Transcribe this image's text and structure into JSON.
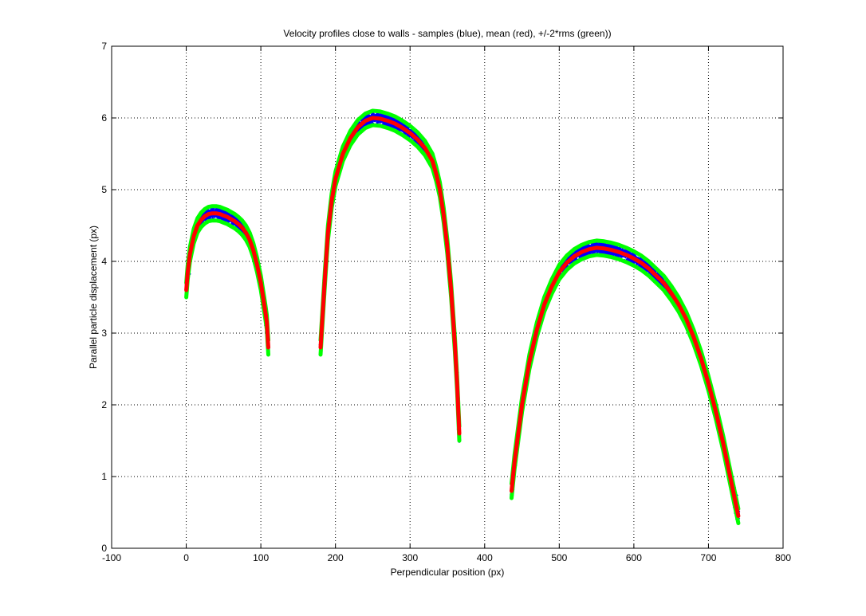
{
  "chart_data": {
    "type": "scatter",
    "title": "Velocity profiles close to walls - samples (blue), mean (red), +/-2*rms (green))",
    "xlabel": "Perpendicular position (px)",
    "ylabel": "Parallel particle displacement (px)",
    "xlim": [
      -100,
      800
    ],
    "ylim": [
      0,
      7
    ],
    "xticks": [
      "-100",
      "0",
      "100",
      "200",
      "300",
      "400",
      "500",
      "600",
      "700",
      "800"
    ],
    "yticks": [
      "0",
      "1",
      "2",
      "3",
      "4",
      "5",
      "6",
      "7"
    ],
    "grid": true,
    "colors": {
      "samples": "#0000ff",
      "mean": "#ff0000",
      "rms": "#00ff00"
    },
    "series": [
      {
        "values": [
          {
            "x": [
              0,
              2,
              5,
              10,
              15,
              20,
              25,
              30,
              35,
              40,
              45,
              50,
              55,
              60,
              65,
              70,
              75,
              80,
              85,
              90,
              95,
              100,
              103,
              106,
              108,
              110
            ],
            "y": [
              3.6,
              3.85,
              4.1,
              4.35,
              4.5,
              4.58,
              4.63,
              4.66,
              4.67,
              4.67,
              4.66,
              4.64,
              4.62,
              4.59,
              4.56,
              4.52,
              4.47,
              4.4,
              4.3,
              4.15,
              3.95,
              3.7,
              3.5,
              3.3,
              3.15,
              2.8
            ]
          },
          {
            "x": [
              180,
              183,
              186,
              190,
              195,
              200,
              210,
              220,
              230,
              240,
              250,
              260,
              270,
              280,
              290,
              300,
              310,
              320,
              330,
              335,
              340,
              345,
              350,
              355,
              360,
              363,
              366
            ],
            "y": [
              2.8,
              3.3,
              3.8,
              4.4,
              4.85,
              5.15,
              5.5,
              5.72,
              5.87,
              5.96,
              6.0,
              5.99,
              5.96,
              5.92,
              5.86,
              5.79,
              5.7,
              5.58,
              5.4,
              5.22,
              5.0,
              4.65,
              4.2,
              3.6,
              2.85,
              2.3,
              1.6
            ]
          },
          {
            "x": [
              436,
              440,
              445,
              450,
              460,
              470,
              480,
              490,
              500,
              510,
              520,
              530,
              540,
              550,
              560,
              570,
              580,
              590,
              600,
              610,
              620,
              630,
              640,
              650,
              660,
              670,
              680,
              690,
              700,
              710,
              720,
              730,
              735,
              740
            ],
            "y": [
              0.8,
              1.2,
              1.6,
              2.0,
              2.6,
              3.05,
              3.4,
              3.65,
              3.85,
              3.98,
              4.07,
              4.13,
              4.17,
              4.19,
              4.18,
              4.16,
              4.13,
              4.09,
              4.04,
              3.98,
              3.9,
              3.8,
              3.7,
              3.56,
              3.4,
              3.2,
              2.95,
              2.65,
              2.3,
              1.9,
              1.45,
              0.95,
              0.7,
              0.45
            ]
          }
        ]
      }
    ]
  }
}
